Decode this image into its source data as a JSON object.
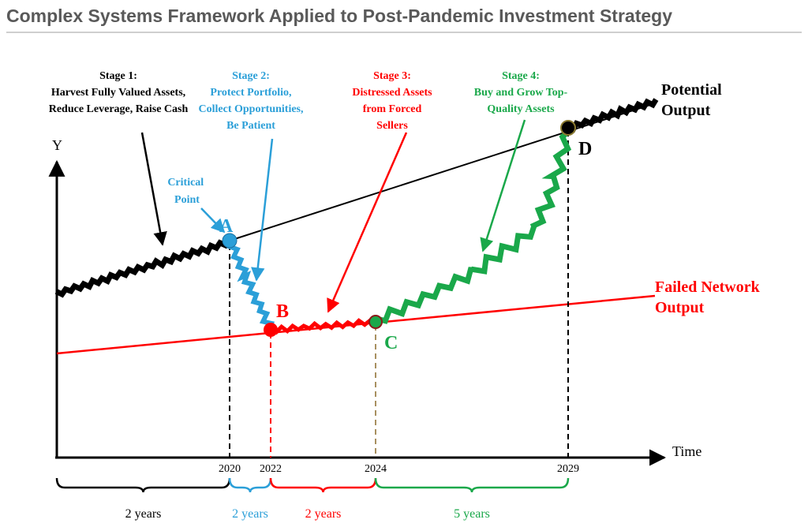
{
  "header": {
    "title": "Complex Systems Framework Applied to Post-Pandemic Investment Strategy"
  },
  "axes": {
    "y": "Y",
    "x": "Time"
  },
  "curves": {
    "potential": [
      "Potential",
      "Output"
    ],
    "failed": [
      "Failed Network",
      "Output"
    ]
  },
  "critical_point": [
    "Critical",
    "Point"
  ],
  "stages": [
    {
      "lines": [
        "Stage 1:",
        "Harvest Fully Valued Assets,",
        "Reduce Leverage, Raise Cash"
      ]
    },
    {
      "lines": [
        "Stage 2:",
        "Protect Portfolio,",
        "Collect Opportunities,",
        "Be Patient"
      ]
    },
    {
      "lines": [
        "Stage 3:",
        "Distressed Assets",
        "from Forced",
        "Sellers"
      ]
    },
    {
      "lines": [
        "Stage 4:",
        "Buy and Grow Top-",
        "Quality Assets"
      ]
    }
  ],
  "points": [
    "A",
    "B",
    "C",
    "D"
  ],
  "years": [
    "2020",
    "2022",
    "2024",
    "2029"
  ],
  "durations": [
    "2 years",
    "2 years",
    "2 years",
    "5 years"
  ]
}
